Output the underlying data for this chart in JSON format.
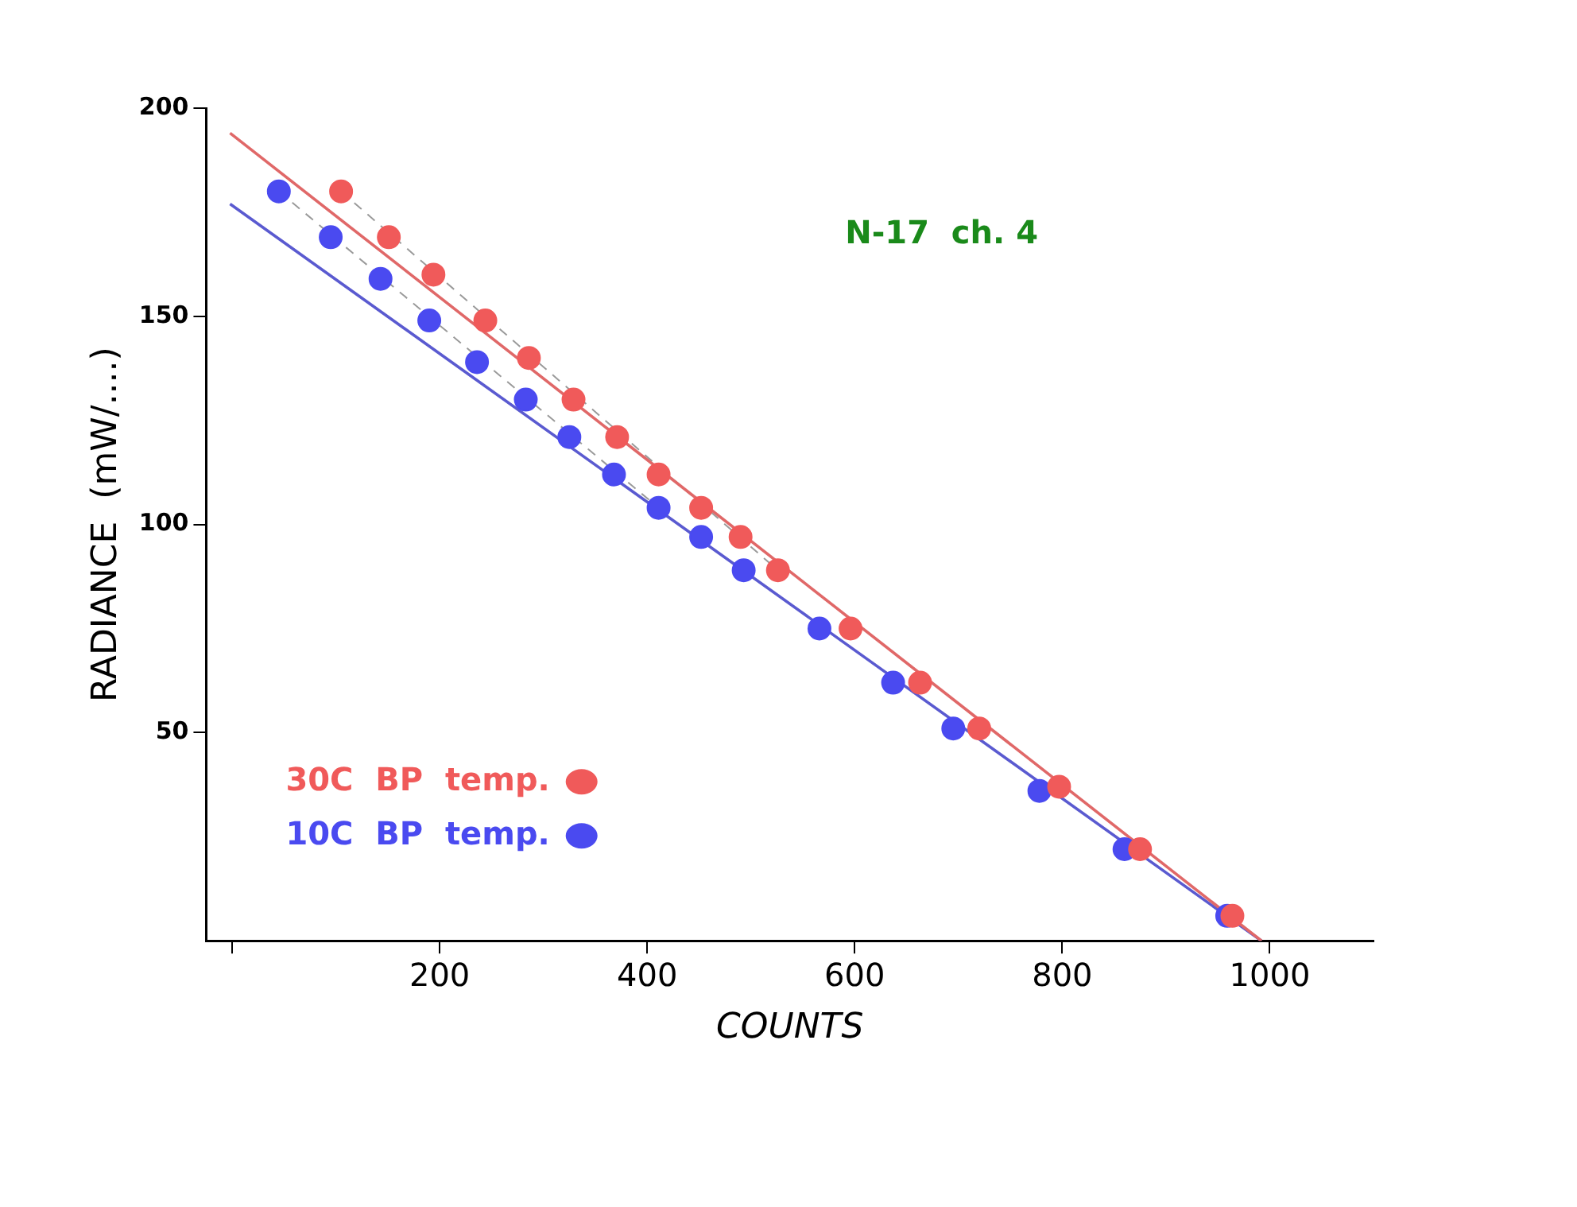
{
  "chart_data": {
    "type": "scatter",
    "title": "N-17  ch. 4",
    "xlabel": "COUNTS",
    "ylabel": "RADIANCE  (mW/....)",
    "xlim": [
      -25,
      1100
    ],
    "xticks": [
      {
        "value": 0,
        "label": null
      },
      200,
      400,
      600,
      800,
      1000
    ],
    "ylim": [
      0,
      200
    ],
    "yticks": [
      50,
      100,
      150,
      200
    ],
    "grid": false,
    "legend": "bottom left",
    "series": [
      {
        "name": "30C  BP  temp.",
        "color": "#f05a5a",
        "marker": "circle",
        "x": [
          105,
          151,
          194,
          244,
          286,
          329,
          371,
          411,
          452,
          490,
          526,
          596,
          663,
          720,
          797,
          875,
          964
        ],
        "values": [
          180,
          169,
          160,
          149,
          140,
          130,
          121,
          112,
          104,
          97,
          89,
          75,
          62,
          51,
          37,
          22,
          6
        ]
      },
      {
        "name": "10C  BP  temp.",
        "color": "#4a4af0",
        "marker": "circle",
        "x": [
          45,
          95,
          143,
          190,
          236,
          283,
          325,
          368,
          411,
          452,
          493,
          566,
          637,
          695,
          778,
          860,
          959
        ],
        "values": [
          180,
          169,
          159,
          149,
          139,
          130,
          121,
          112,
          104,
          97,
          89,
          75,
          62,
          51,
          36,
          22,
          6
        ]
      },
      {
        "type": "line",
        "marker": "none",
        "color": "#e06868",
        "x": [
          -2,
          992
        ],
        "values": [
          194,
          0
        ]
      },
      {
        "type": "line",
        "marker": "none",
        "color": "#5a5ad0",
        "x": [
          -2,
          992
        ],
        "values": [
          177,
          0
        ]
      },
      {
        "type": "line",
        "marker": "none",
        "line_style": "dashed",
        "color": "#9a9a9a",
        "x": [
          105,
          526
        ],
        "values": [
          180,
          89
        ]
      },
      {
        "type": "line",
        "marker": "none",
        "line_style": "dashed",
        "color": "#9a9a9a",
        "x": [
          45,
          411
        ],
        "values": [
          180,
          104
        ]
      }
    ]
  }
}
